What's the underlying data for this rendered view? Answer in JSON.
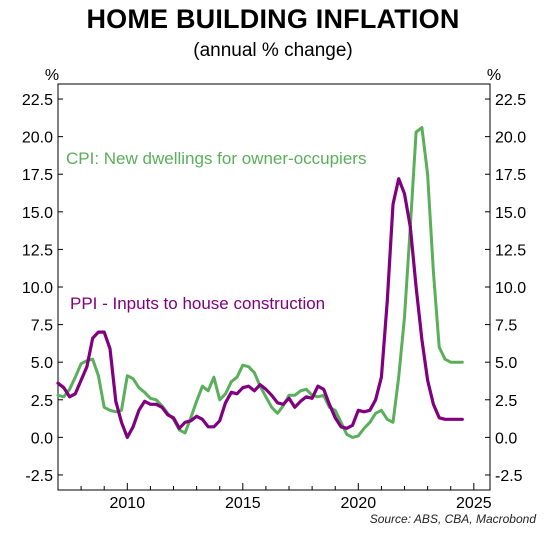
{
  "header": {
    "title": "HOME BUILDING INFLATION",
    "subtitle": "(annual % change)"
  },
  "source": "Source: ABS, CBA, Macrobond",
  "chart_data": {
    "type": "line",
    "ylabel_left": "%",
    "ylabel_right": "%",
    "ylim": [
      -3.5,
      23.5
    ],
    "yticks": [
      "-2.5",
      "0.0",
      "2.5",
      "5.0",
      "7.5",
      "10.0",
      "12.5",
      "15.0",
      "17.5",
      "20.0",
      "22.5"
    ],
    "ytick_values": [
      -2.5,
      0,
      2.5,
      5,
      7.5,
      10,
      12.5,
      15,
      17.5,
      20,
      22.5
    ],
    "xlim": [
      2007.0,
      2025.7
    ],
    "xticks": [
      "2010",
      "2015",
      "2020",
      "2025"
    ],
    "xtick_values": [
      2010,
      2015,
      2020,
      2025
    ],
    "grid": false,
    "series": [
      {
        "name": "CPI: New dwellings for owner-occupiers",
        "color": "#5aaf5a",
        "x": [
          2007.0,
          2007.25,
          2007.5,
          2007.75,
          2008.0,
          2008.25,
          2008.5,
          2008.75,
          2009.0,
          2009.25,
          2009.5,
          2009.75,
          2010.0,
          2010.25,
          2010.5,
          2010.75,
          2011.0,
          2011.25,
          2011.5,
          2011.75,
          2012.0,
          2012.25,
          2012.5,
          2012.75,
          2013.0,
          2013.25,
          2013.5,
          2013.75,
          2014.0,
          2014.25,
          2014.5,
          2014.75,
          2015.0,
          2015.25,
          2015.5,
          2015.75,
          2016.0,
          2016.25,
          2016.5,
          2016.75,
          2017.0,
          2017.25,
          2017.5,
          2017.75,
          2018.0,
          2018.25,
          2018.5,
          2018.75,
          2019.0,
          2019.25,
          2019.5,
          2019.75,
          2020.0,
          2020.25,
          2020.5,
          2020.75,
          2021.0,
          2021.25,
          2021.5,
          2021.75,
          2022.0,
          2022.25,
          2022.5,
          2022.75,
          2023.0,
          2023.25,
          2023.5,
          2023.75,
          2024.0,
          2024.25,
          2024.5
        ],
        "y": [
          2.8,
          2.7,
          3.2,
          4.0,
          4.9,
          5.1,
          5.2,
          4.1,
          2.0,
          1.8,
          1.7,
          1.8,
          4.1,
          3.9,
          3.3,
          3.0,
          2.6,
          2.5,
          2.1,
          1.6,
          1.2,
          0.5,
          0.3,
          1.3,
          2.4,
          3.4,
          3.1,
          4.0,
          2.5,
          2.9,
          3.7,
          4.0,
          4.8,
          4.7,
          4.3,
          3.4,
          2.7,
          2.0,
          1.6,
          2.1,
          2.8,
          2.8,
          3.1,
          3.2,
          2.8,
          2.7,
          2.8,
          2.0,
          1.8,
          1.0,
          0.2,
          0.0,
          0.1,
          0.6,
          1.0,
          1.6,
          1.8,
          1.2,
          1.0,
          4.0,
          8.0,
          14.0,
          20.3,
          20.6,
          17.5,
          11.0,
          6.0,
          5.2,
          5.0,
          5.0,
          5.0
        ]
      },
      {
        "name": "PPI - Inputs to house construction",
        "color": "#800080",
        "x": [
          2007.0,
          2007.25,
          2007.5,
          2007.75,
          2008.0,
          2008.25,
          2008.5,
          2008.75,
          2009.0,
          2009.25,
          2009.5,
          2009.75,
          2010.0,
          2010.25,
          2010.5,
          2010.75,
          2011.0,
          2011.25,
          2011.5,
          2011.75,
          2012.0,
          2012.25,
          2012.5,
          2012.75,
          2013.0,
          2013.25,
          2013.5,
          2013.75,
          2014.0,
          2014.25,
          2014.5,
          2014.75,
          2015.0,
          2015.25,
          2015.5,
          2015.75,
          2016.0,
          2016.25,
          2016.5,
          2016.75,
          2017.0,
          2017.25,
          2017.5,
          2017.75,
          2018.0,
          2018.25,
          2018.5,
          2018.75,
          2019.0,
          2019.25,
          2019.5,
          2019.75,
          2020.0,
          2020.25,
          2020.5,
          2020.75,
          2021.0,
          2021.25,
          2021.5,
          2021.75,
          2022.0,
          2022.25,
          2022.5,
          2022.75,
          2023.0,
          2023.25,
          2023.5,
          2023.75,
          2024.0,
          2024.25,
          2024.5
        ],
        "y": [
          3.6,
          3.3,
          2.7,
          2.9,
          3.8,
          4.7,
          6.6,
          7.0,
          7.0,
          5.9,
          2.4,
          1.0,
          0.0,
          0.7,
          1.8,
          2.4,
          2.2,
          2.2,
          2.0,
          1.5,
          1.3,
          0.6,
          1.0,
          1.1,
          1.4,
          1.2,
          0.7,
          0.7,
          1.1,
          2.3,
          3.0,
          2.9,
          3.3,
          3.4,
          3.1,
          3.5,
          3.2,
          2.8,
          2.3,
          2.2,
          2.6,
          2.0,
          2.4,
          2.7,
          2.6,
          3.4,
          3.2,
          2.2,
          1.3,
          0.7,
          0.6,
          0.8,
          1.8,
          1.7,
          1.8,
          2.5,
          4.0,
          9.0,
          15.5,
          17.2,
          16.2,
          14.0,
          10.0,
          6.5,
          3.8,
          2.2,
          1.3,
          1.2,
          1.2,
          1.2,
          1.2
        ]
      }
    ],
    "annotations": [
      {
        "text": "CPI: New dwellings for owner-occupiers",
        "color": "#5aaf5a"
      },
      {
        "text": "PPI - Inputs to house construction",
        "color": "#800080"
      }
    ]
  }
}
